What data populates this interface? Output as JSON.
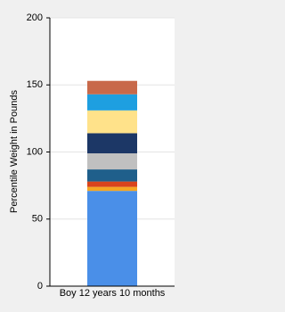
{
  "chart_data": {
    "type": "stacked-bar",
    "y_label": "Percentile Weight in Pounds",
    "categories": [
      "Boy 12 years 10 months"
    ],
    "series": [
      {
        "color": "#4a8fe8",
        "values": [
          71
        ]
      },
      {
        "color": "#f5a623",
        "values": [
          3
        ]
      },
      {
        "color": "#d9441c",
        "values": [
          4
        ]
      },
      {
        "color": "#1f5f8b",
        "values": [
          9
        ]
      },
      {
        "color": "#c0c0c0",
        "values": [
          12
        ]
      },
      {
        "color": "#1c3766",
        "values": [
          15
        ]
      },
      {
        "color": "#ffe28a",
        "values": [
          17
        ]
      },
      {
        "color": "#1e9fe0",
        "values": [
          12
        ]
      },
      {
        "color": "#c8694a",
        "values": [
          10
        ]
      }
    ],
    "ylim": [
      0,
      200
    ],
    "yticks": [
      0,
      50,
      100,
      150,
      200
    ],
    "grid": true
  }
}
